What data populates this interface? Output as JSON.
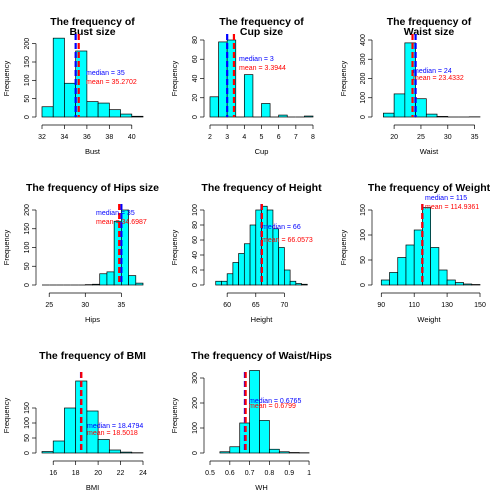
{
  "colors": {
    "bar_fill": "#00ffff",
    "bar_stroke": "#000000",
    "median": "#0000ff",
    "mean": "#ff0000"
  },
  "chart_data": [
    {
      "type": "bar",
      "title": [
        "The frequency of",
        "Bust size"
      ],
      "xlabel": "Bust",
      "ylabel": "Frequency",
      "bin_edges": [
        32,
        33,
        34,
        35,
        36,
        37,
        38,
        39,
        40,
        41
      ],
      "values": [
        28,
        215,
        92,
        180,
        42,
        38,
        20,
        8,
        2
      ],
      "xlim": [
        32,
        41
      ],
      "xticks": [
        32,
        34,
        36,
        38,
        40
      ],
      "ylim": [
        0,
        210
      ],
      "yticks": [
        0,
        50,
        100,
        150,
        200
      ],
      "median": {
        "label": "median = ",
        "value": "35"
      },
      "mean": {
        "label": "mean = ",
        "value": "35.2702"
      }
    },
    {
      "type": "bar",
      "title": [
        "The frequency of",
        "Cup size"
      ],
      "xlabel": "Cup",
      "ylabel": "Frequency",
      "bin_edges": [
        2,
        2.5,
        3,
        3.5,
        4,
        4.5,
        5,
        5.5,
        6,
        6.5,
        7,
        7.5,
        8
      ],
      "values": [
        21,
        78,
        80,
        0,
        44,
        0,
        14,
        0,
        2,
        0,
        0,
        1
      ],
      "xlim": [
        2,
        8
      ],
      "xticks": [
        2,
        3,
        4,
        5,
        6,
        7,
        8
      ],
      "ylim": [
        0,
        80
      ],
      "yticks": [
        0,
        20,
        40,
        60,
        80
      ],
      "median": {
        "label": "median = ",
        "value": "3"
      },
      "mean": {
        "label": "mean = ",
        "value": "3.3944"
      }
    },
    {
      "type": "bar",
      "title": [
        "The frequency of",
        "Waist size"
      ],
      "xlabel": "Waist",
      "ylabel": "Frequency",
      "bin_edges": [
        18,
        20,
        22,
        24,
        26,
        28,
        30,
        32,
        34,
        36
      ],
      "values": [
        20,
        120,
        385,
        95,
        15,
        3,
        0,
        0,
        1
      ],
      "xlim": [
        17,
        36
      ],
      "xticks": [
        20,
        25,
        30,
        35
      ],
      "ylim": [
        0,
        400
      ],
      "yticks": [
        0,
        100,
        200,
        300,
        400
      ],
      "median": {
        "label": "median = ",
        "value": "24"
      },
      "mean": {
        "label": "mean = ",
        "value": "23.4332"
      }
    },
    {
      "type": "bar",
      "title": [
        "The frequency of Hips size"
      ],
      "xlabel": "Hips",
      "ylabel": "Frequency",
      "bin_edges": [
        24,
        25,
        26,
        27,
        28,
        29,
        30,
        31,
        32,
        33,
        34,
        35,
        36,
        37,
        38
      ],
      "values": [
        0,
        0,
        0,
        0,
        0,
        0,
        1,
        2,
        30,
        35,
        170,
        200,
        25,
        5
      ],
      "xlim": [
        24,
        38
      ],
      "xticks": [
        25,
        30,
        35
      ],
      "ylim": [
        0,
        200
      ],
      "yticks": [
        0,
        50,
        100,
        150,
        200
      ],
      "median": {
        "label": "median = ",
        "value": "35"
      },
      "mean": {
        "label": "mean = ",
        "value": "34.6987"
      }
    },
    {
      "type": "bar",
      "title": [
        "The frequency of Height"
      ],
      "xlabel": "Height",
      "ylabel": "Frequency",
      "bin_edges": [
        58,
        59,
        60,
        61,
        62,
        63,
        64,
        65,
        66,
        67,
        68,
        69,
        70,
        71,
        72,
        73,
        74
      ],
      "values": [
        5,
        5,
        15,
        30,
        42,
        55,
        80,
        100,
        105,
        100,
        75,
        50,
        20,
        5,
        2,
        1
      ],
      "xlim": [
        57,
        75
      ],
      "xticks": [
        60,
        65,
        70
      ],
      "ylim": [
        0,
        100
      ],
      "yticks": [
        0,
        20,
        40,
        60,
        80,
        100
      ],
      "median": {
        "label": "median = ",
        "value": "66"
      },
      "mean": {
        "label": "mean = ",
        "value": "66.0573"
      }
    },
    {
      "type": "bar",
      "title": [
        "The frequency of Weight"
      ],
      "xlabel": "Weight",
      "ylabel": "Frequency",
      "bin_edges": [
        90,
        95,
        100,
        105,
        110,
        115,
        120,
        125,
        130,
        135,
        140,
        145,
        150
      ],
      "values": [
        10,
        25,
        55,
        80,
        110,
        155,
        75,
        30,
        10,
        5,
        2,
        1
      ],
      "xlim": [
        88,
        150
      ],
      "xticks": [
        90,
        110,
        130,
        150
      ],
      "ylim": [
        0,
        150
      ],
      "yticks": [
        0,
        50,
        100,
        150
      ],
      "median": {
        "label": "median = ",
        "value": "115"
      },
      "mean": {
        "label": "mean = ",
        "value": "114.9361"
      }
    },
    {
      "type": "bar",
      "title": [
        "The frequency of BMI"
      ],
      "xlabel": "BMI",
      "ylabel": "Frequency",
      "bin_edges": [
        15,
        16,
        17,
        18,
        19,
        20,
        21,
        22,
        23,
        24
      ],
      "values": [
        5,
        40,
        150,
        240,
        140,
        45,
        10,
        3,
        1
      ],
      "xlim": [
        15,
        24
      ],
      "xticks": [
        16,
        18,
        20,
        22,
        24
      ],
      "ylim": [
        0,
        250
      ],
      "yticks": [
        0,
        50,
        100,
        150
      ],
      "median": {
        "label": "median = ",
        "value": "18.4794"
      },
      "mean": {
        "label": "mean = ",
        "value": "18.5018"
      }
    },
    {
      "type": "bar",
      "title": [
        "The frequency of Waist/Hips"
      ],
      "xlabel": "WH",
      "ylabel": "Frequency",
      "bin_edges": [
        0.55,
        0.6,
        0.65,
        0.7,
        0.75,
        0.8,
        0.85,
        0.9,
        0.95,
        1.0
      ],
      "values": [
        5,
        25,
        120,
        330,
        130,
        15,
        5,
        2,
        1
      ],
      "xlim": [
        0.5,
        1.02
      ],
      "xticks": [
        0.5,
        0.6,
        0.7,
        0.8,
        0.9,
        1.0
      ],
      "ylim": [
        0,
        300
      ],
      "yticks": [
        0,
        100,
        200,
        300
      ],
      "median": {
        "label": "median = ",
        "value": "0.6765"
      },
      "mean": {
        "label": "mean = ",
        "value": "0.6799"
      }
    }
  ]
}
